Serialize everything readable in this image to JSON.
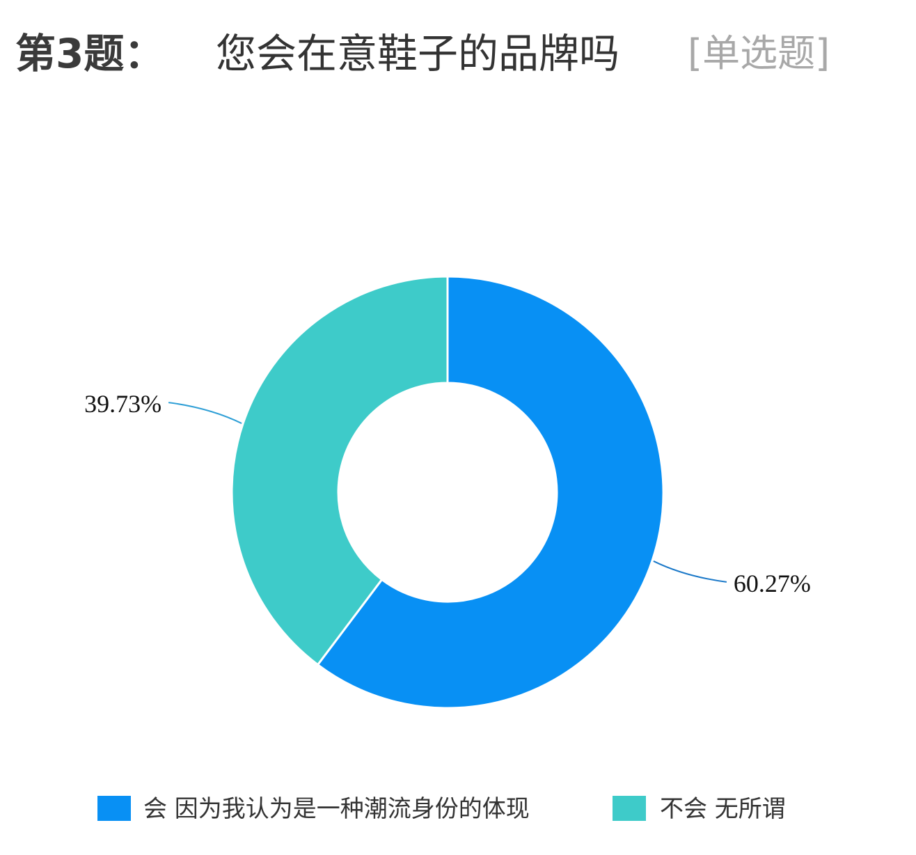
{
  "header": {
    "question_number": "第3题：",
    "question_text": "您会在意鞋子的品牌吗",
    "question_type": "[单选题]"
  },
  "chart_data": {
    "type": "pie",
    "donut": true,
    "categories": [
      "会 因为我认为是一种潮流身份的体现",
      "不会 无所谓"
    ],
    "values": [
      60.27,
      39.73
    ],
    "data_labels": [
      "60.27%",
      "39.73%"
    ],
    "colors": [
      "#0890f4",
      "#3ecbc9"
    ],
    "legend_position": "bottom",
    "title": ""
  }
}
